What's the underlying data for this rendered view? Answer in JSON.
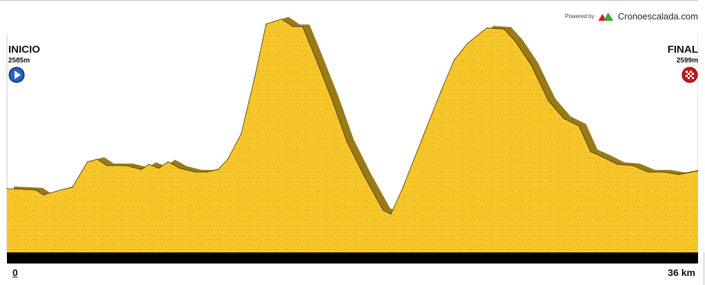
{
  "powered_by": "Powered by",
  "brand_name": "Cronoescalada.com",
  "start": {
    "label": "INICIO",
    "elevation": "2585m",
    "icon": "play-icon",
    "icon_color": "#1a4fa0"
  },
  "finish": {
    "label": "FINAL",
    "elevation": "2599m",
    "icon": "checkered-flag-icon",
    "icon_color": "#c0181b"
  },
  "chart_data": {
    "type": "area",
    "title": "",
    "xlabel": "",
    "ylabel": "",
    "x_unit": "km",
    "y_unit": "m",
    "xlim": [
      0,
      36
    ],
    "x_tick_labels": [
      "0",
      "36 km"
    ],
    "grid": false,
    "fill_color": "#f7c72a",
    "shadow_color": "#9a7a16",
    "series": [
      {
        "x": [
          0,
          1.5,
          1.9,
          2.8,
          3.4,
          4.2,
          4.7,
          5.2,
          6.2,
          7.0,
          7.4,
          7.9,
          8.4,
          9.0,
          9.8,
          10.4,
          11.0,
          11.5,
          12.2,
          12.9,
          13.5,
          14.3,
          14.9,
          15.4,
          16.0,
          16.9,
          17.7,
          18.6,
          19.6,
          20.0,
          20.6,
          21.7,
          22.6,
          23.3,
          24.0,
          25.0,
          25.9,
          26.5,
          27.3,
          28.2,
          29.0,
          29.8,
          30.4,
          31.0,
          31.8,
          32.6,
          33.4,
          34.2,
          35.0,
          36.0
        ],
        "y": [
          2585,
          2584,
          2580,
          2584,
          2586,
          2606,
          2608,
          2603,
          2603,
          2600,
          2604,
          2601,
          2606,
          2601,
          2598,
          2598,
          2600,
          2608,
          2628,
          2672,
          2714,
          2718,
          2712,
          2712,
          2690,
          2656,
          2622,
          2595,
          2568,
          2565,
          2585,
          2627,
          2661,
          2686,
          2699,
          2711,
          2710,
          2700,
          2682,
          2654,
          2640,
          2634,
          2614,
          2610,
          2604,
          2603,
          2598,
          2598,
          2596,
          2599
        ]
      }
    ]
  }
}
